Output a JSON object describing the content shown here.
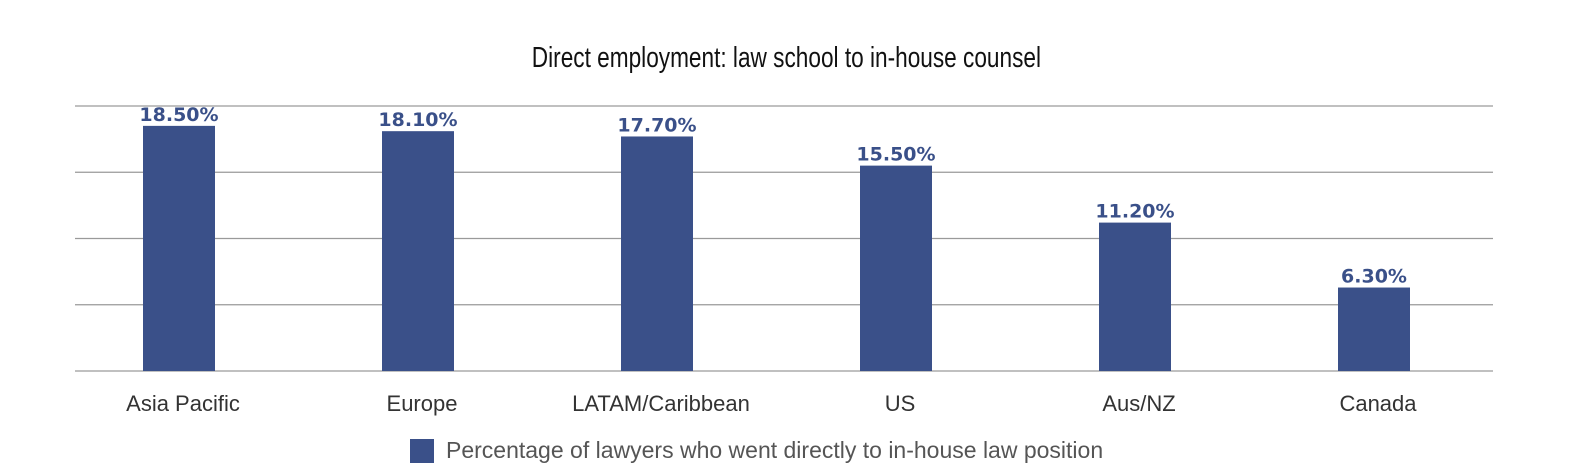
{
  "chart_data": {
    "type": "bar",
    "title": "Direct employment: law school to in-house counsel",
    "categories": [
      "Asia Pacific",
      "Europe",
      "LATAM/Caribbean",
      "US",
      "Aus/NZ",
      "Canada"
    ],
    "series": [
      {
        "name": "Percentage of lawyers who went directly to in-house law position",
        "values": [
          18.5,
          18.1,
          17.7,
          15.5,
          11.2,
          6.3
        ],
        "color": "#3a5089"
      }
    ],
    "data_labels": [
      "18.50%",
      "18.10%",
      "17.70%",
      "15.50%",
      "11.20%",
      "6.30%"
    ],
    "xlabel": "",
    "ylabel": "",
    "ylim": [
      0,
      20
    ],
    "grid": true,
    "grid_step": 5,
    "legend_placement": "bottom",
    "colors": {
      "bar": "#3a5089",
      "label": "#3a5089",
      "grid": "#9a9a9a"
    }
  }
}
